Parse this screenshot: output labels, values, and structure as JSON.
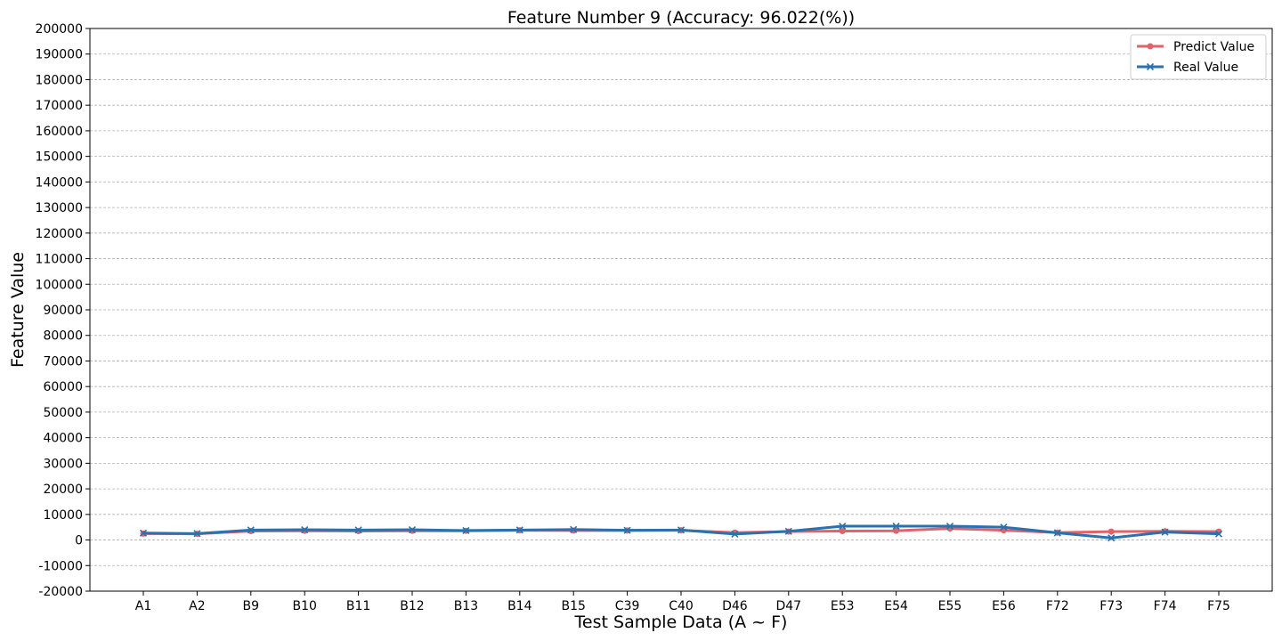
{
  "chart_data": {
    "type": "line",
    "title": "Feature Number 9 (Accuracy: 96.022(%))",
    "xlabel": "Test Sample Data (A ~ F)",
    "ylabel": "Feature Value",
    "ylim": [
      -20000,
      200000
    ],
    "ytick_step": 10000,
    "grid": "horizontal-dashed",
    "legend_position": "top-right",
    "categories": [
      "A1",
      "A2",
      "B9",
      "B10",
      "B11",
      "B12",
      "B13",
      "B14",
      "B15",
      "C39",
      "C40",
      "D46",
      "D47",
      "E53",
      "E54",
      "E55",
      "E56",
      "F72",
      "F73",
      "F74",
      "F75"
    ],
    "series": [
      {
        "name": "Predict Value",
        "color": "#e0636a",
        "marker": "circle",
        "values": [
          2500,
          2400,
          3500,
          3600,
          3500,
          3600,
          3600,
          3800,
          3700,
          3700,
          3800,
          2900,
          3300,
          3500,
          3600,
          4500,
          3800,
          2900,
          3300,
          3400,
          3300
        ]
      },
      {
        "name": "Real Value",
        "color": "#2a72ad",
        "marker": "x",
        "values": [
          2700,
          2500,
          3900,
          4000,
          3900,
          4000,
          3700,
          3900,
          4100,
          3800,
          3900,
          2300,
          3400,
          5400,
          5400,
          5400,
          5000,
          2800,
          800,
          3100,
          2400
        ]
      }
    ]
  }
}
